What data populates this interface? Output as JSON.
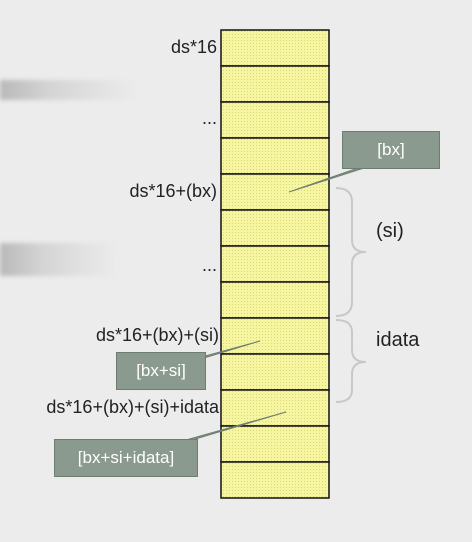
{
  "address_labels": {
    "base": "ds*16",
    "ellipsis_top": "...",
    "plus_bx": "ds*16+(bx)",
    "ellipsis_mid": "...",
    "plus_bx_si": "ds*16+(bx)+(si)",
    "plus_bx_si_idata": "ds*16+(bx)+(si)+idata"
  },
  "callouts": {
    "bx": "[bx]",
    "bx_si": "[bx+si]",
    "bx_si_idata": "[bx+si+idata]"
  },
  "brackets": {
    "si": "(si)",
    "idata": "idata"
  },
  "memory": {
    "cell_count": 13
  },
  "colors": {
    "cell_fill": "#f6f5a0",
    "cell_border": "#111111",
    "callout_fill": "#8a9a8e",
    "bracket": "#c8c8c8"
  }
}
